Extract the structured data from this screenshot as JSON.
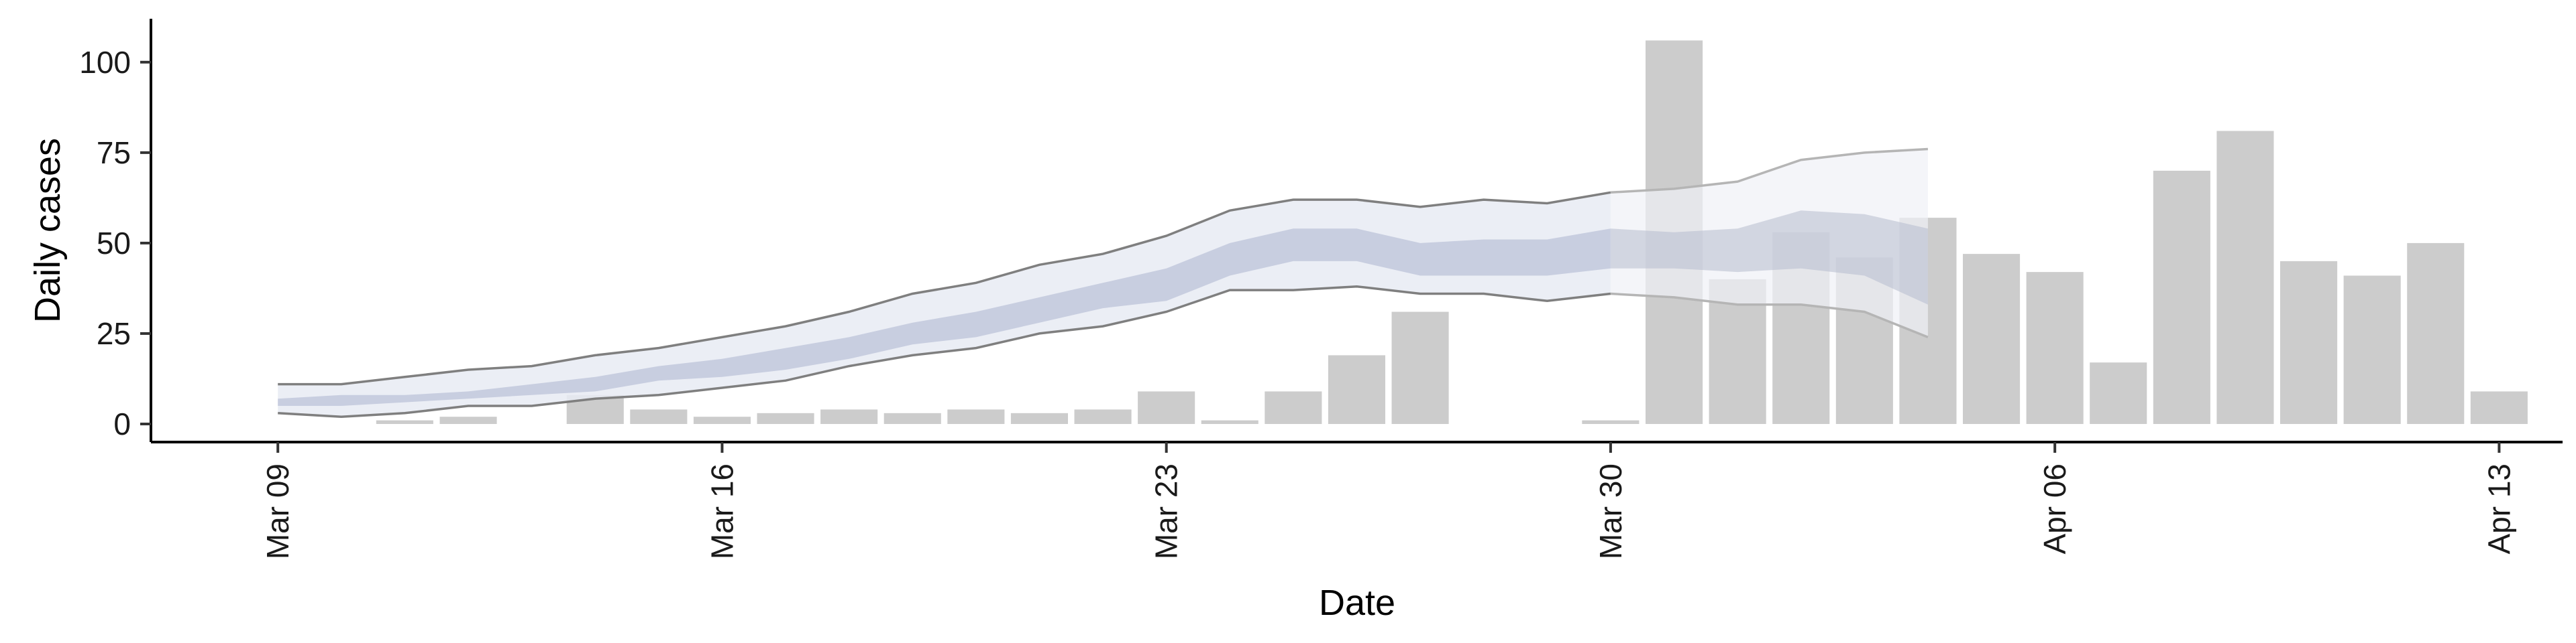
{
  "chart_data": {
    "type": "bar",
    "xlabel": "Date",
    "ylabel": "Daily cases",
    "ylim": [
      -5,
      112
    ],
    "xlim": [
      "2020-03-07",
      "2020-04-14"
    ],
    "y_ticks": [
      0,
      25,
      50,
      75,
      100
    ],
    "x_ticks": [
      {
        "date": "2020-03-09",
        "label": "Mar 09"
      },
      {
        "date": "2020-03-16",
        "label": "Mar 16"
      },
      {
        "date": "2020-03-23",
        "label": "Mar 23"
      },
      {
        "date": "2020-03-30",
        "label": "Mar 30"
      },
      {
        "date": "2020-04-06",
        "label": "Apr 06"
      },
      {
        "date": "2020-04-13",
        "label": "Apr 13"
      }
    ],
    "grid": false,
    "legend": "none",
    "colors": {
      "bars": "#cccccc",
      "outer_band": "#e8ebf3",
      "inner_band": "#c4cade",
      "band_edge": "#7f7f7f",
      "forecast_band": "#eff1f6",
      "forecast_inner": "#b7bccd",
      "forecast_edge": "#b5b5b5",
      "axis": "#000000"
    },
    "bars": [
      {
        "date": "2020-03-09",
        "value": 0
      },
      {
        "date": "2020-03-10",
        "value": 0
      },
      {
        "date": "2020-03-11",
        "value": 1
      },
      {
        "date": "2020-03-12",
        "value": 2
      },
      {
        "date": "2020-03-13",
        "value": 0
      },
      {
        "date": "2020-03-14",
        "value": 8
      },
      {
        "date": "2020-03-15",
        "value": 4
      },
      {
        "date": "2020-03-16",
        "value": 2
      },
      {
        "date": "2020-03-17",
        "value": 3
      },
      {
        "date": "2020-03-18",
        "value": 4
      },
      {
        "date": "2020-03-19",
        "value": 3
      },
      {
        "date": "2020-03-20",
        "value": 4
      },
      {
        "date": "2020-03-21",
        "value": 3
      },
      {
        "date": "2020-03-22",
        "value": 4
      },
      {
        "date": "2020-03-23",
        "value": 9
      },
      {
        "date": "2020-03-24",
        "value": 1
      },
      {
        "date": "2020-03-25",
        "value": 9
      },
      {
        "date": "2020-03-26",
        "value": 19
      },
      {
        "date": "2020-03-27",
        "value": 31
      },
      {
        "date": "2020-03-28",
        "value": 0
      },
      {
        "date": "2020-03-29",
        "value": 0
      },
      {
        "date": "2020-03-30",
        "value": 1
      },
      {
        "date": "2020-03-31",
        "value": 106
      },
      {
        "date": "2020-04-01",
        "value": 40
      },
      {
        "date": "2020-04-02",
        "value": 53
      },
      {
        "date": "2020-04-03",
        "value": 46
      },
      {
        "date": "2020-04-04",
        "value": 57
      },
      {
        "date": "2020-04-05",
        "value": 47
      },
      {
        "date": "2020-04-06",
        "value": 42
      },
      {
        "date": "2020-04-07",
        "value": 17
      },
      {
        "date": "2020-04-08",
        "value": 70
      },
      {
        "date": "2020-04-09",
        "value": 81
      },
      {
        "date": "2020-04-10",
        "value": 45
      },
      {
        "date": "2020-04-11",
        "value": 41
      },
      {
        "date": "2020-04-12",
        "value": 50
      },
      {
        "date": "2020-04-13",
        "value": 9
      }
    ],
    "estimate": [
      {
        "date": "2020-03-09",
        "lower90": 3,
        "upper90": 11,
        "lower50": 5,
        "upper50": 7
      },
      {
        "date": "2020-03-10",
        "lower90": 2,
        "upper90": 11,
        "lower50": 5,
        "upper50": 8
      },
      {
        "date": "2020-03-11",
        "lower90": 3,
        "upper90": 13,
        "lower50": 6,
        "upper50": 8
      },
      {
        "date": "2020-03-12",
        "lower90": 5,
        "upper90": 15,
        "lower50": 7,
        "upper50": 9
      },
      {
        "date": "2020-03-13",
        "lower90": 5,
        "upper90": 16,
        "lower50": 8,
        "upper50": 11
      },
      {
        "date": "2020-03-14",
        "lower90": 7,
        "upper90": 19,
        "lower50": 9,
        "upper50": 13
      },
      {
        "date": "2020-03-15",
        "lower90": 8,
        "upper90": 21,
        "lower50": 12,
        "upper50": 16
      },
      {
        "date": "2020-03-16",
        "lower90": 10,
        "upper90": 24,
        "lower50": 13,
        "upper50": 18
      },
      {
        "date": "2020-03-17",
        "lower90": 12,
        "upper90": 27,
        "lower50": 15,
        "upper50": 21
      },
      {
        "date": "2020-03-18",
        "lower90": 16,
        "upper90": 31,
        "lower50": 18,
        "upper50": 24
      },
      {
        "date": "2020-03-19",
        "lower90": 19,
        "upper90": 36,
        "lower50": 22,
        "upper50": 28
      },
      {
        "date": "2020-03-20",
        "lower90": 21,
        "upper90": 39,
        "lower50": 24,
        "upper50": 31
      },
      {
        "date": "2020-03-21",
        "lower90": 25,
        "upper90": 44,
        "lower50": 28,
        "upper50": 35
      },
      {
        "date": "2020-03-22",
        "lower90": 27,
        "upper90": 47,
        "lower50": 32,
        "upper50": 39
      },
      {
        "date": "2020-03-23",
        "lower90": 31,
        "upper90": 52,
        "lower50": 34,
        "upper50": 43
      },
      {
        "date": "2020-03-24",
        "lower90": 37,
        "upper90": 59,
        "lower50": 41,
        "upper50": 50
      },
      {
        "date": "2020-03-25",
        "lower90": 37,
        "upper90": 62,
        "lower50": 45,
        "upper50": 54
      },
      {
        "date": "2020-03-26",
        "lower90": 38,
        "upper90": 62,
        "lower50": 45,
        "upper50": 54
      },
      {
        "date": "2020-03-27",
        "lower90": 36,
        "upper90": 60,
        "lower50": 41,
        "upper50": 50
      },
      {
        "date": "2020-03-28",
        "lower90": 36,
        "upper90": 62,
        "lower50": 41,
        "upper50": 51
      },
      {
        "date": "2020-03-29",
        "lower90": 34,
        "upper90": 61,
        "lower50": 41,
        "upper50": 51
      },
      {
        "date": "2020-03-30",
        "lower90": 36,
        "upper90": 64,
        "lower50": 43,
        "upper50": 54
      }
    ],
    "forecast": [
      {
        "date": "2020-03-30",
        "lower90": 36,
        "upper90": 64,
        "lower50": 43,
        "upper50": 54
      },
      {
        "date": "2020-03-31",
        "lower90": 35,
        "upper90": 65,
        "lower50": 43,
        "upper50": 53
      },
      {
        "date": "2020-04-01",
        "lower90": 33,
        "upper90": 67,
        "lower50": 42,
        "upper50": 54
      },
      {
        "date": "2020-04-02",
        "lower90": 33,
        "upper90": 73,
        "lower50": 43,
        "upper50": 59
      },
      {
        "date": "2020-04-03",
        "lower90": 31,
        "upper90": 75,
        "lower50": 41,
        "upper50": 58
      },
      {
        "date": "2020-04-04",
        "lower90": 24,
        "upper90": 76,
        "lower50": 33,
        "upper50": 54
      }
    ]
  }
}
